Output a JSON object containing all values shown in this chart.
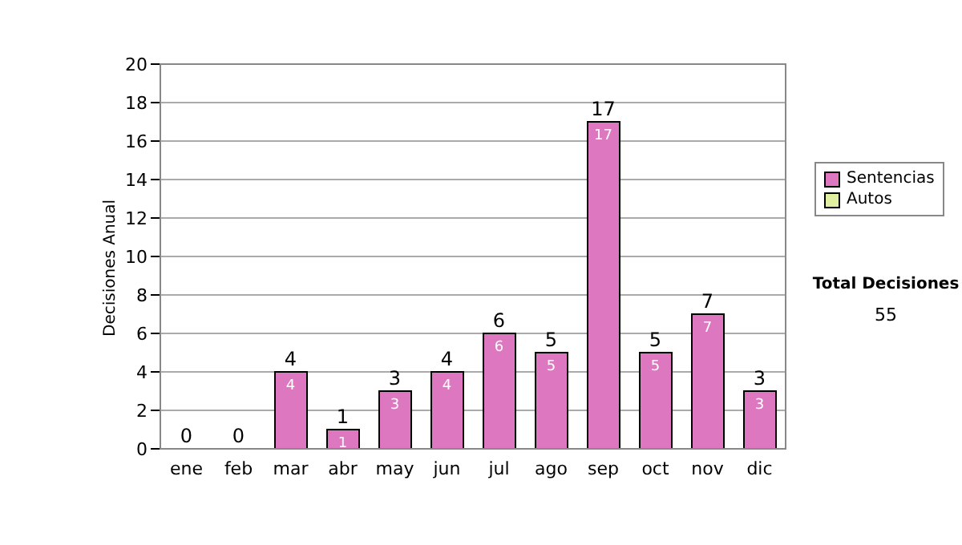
{
  "chart_data": {
    "type": "bar",
    "ylabel": "Decisiones Anual",
    "categories": [
      "ene",
      "feb",
      "mar",
      "abr",
      "may",
      "jun",
      "jul",
      "ago",
      "sep",
      "oct",
      "nov",
      "dic"
    ],
    "series": [
      {
        "name": "Sentencias",
        "color": "#dd77c0",
        "values": [
          0,
          0,
          4,
          1,
          3,
          4,
          6,
          5,
          17,
          5,
          7,
          3
        ],
        "value_labels": [
          null,
          null,
          "4",
          "1",
          "3",
          "4",
          "6",
          "5",
          "17",
          "5",
          "7",
          "3"
        ]
      },
      {
        "name": "Autos",
        "color": "#e0f0a0",
        "values": [
          0,
          0,
          0,
          0,
          0,
          0,
          0,
          0,
          0,
          0,
          0,
          0
        ]
      }
    ],
    "stacked": true,
    "totals": [
      "0",
      "0",
      "4",
      "1",
      "3",
      "4",
      "6",
      "5",
      "17",
      "5",
      "7",
      "3"
    ],
    "ylim": [
      0,
      20
    ],
    "yticks": [
      0,
      2,
      4,
      6,
      8,
      10,
      12,
      14,
      16,
      18,
      20
    ],
    "grid": "y",
    "legend": "right",
    "annotations": [
      "Total Decisiones",
      "55"
    ]
  }
}
